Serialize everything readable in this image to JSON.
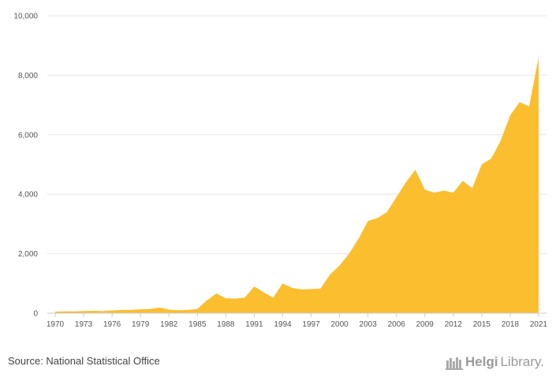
{
  "chart_data": {
    "type": "area",
    "x": [
      1970,
      1971,
      1972,
      1973,
      1974,
      1975,
      1976,
      1977,
      1978,
      1979,
      1980,
      1981,
      1982,
      1983,
      1984,
      1985,
      1986,
      1987,
      1988,
      1989,
      1990,
      1991,
      1992,
      1993,
      1994,
      1995,
      1996,
      1997,
      1998,
      1999,
      2000,
      2001,
      2002,
      2003,
      2004,
      2005,
      2006,
      2007,
      2008,
      2009,
      2010,
      2011,
      2012,
      2013,
      2014,
      2015,
      2016,
      2017,
      2018,
      2019,
      2020,
      2021
    ],
    "values": [
      50,
      60,
      60,
      70,
      80,
      70,
      90,
      110,
      110,
      130,
      140,
      190,
      120,
      100,
      110,
      140,
      430,
      660,
      500,
      490,
      520,
      900,
      700,
      520,
      1000,
      850,
      800,
      810,
      830,
      1300,
      1600,
      2000,
      2500,
      3100,
      3200,
      3400,
      3900,
      4400,
      4820,
      4150,
      4050,
      4120,
      4050,
      4450,
      4200,
      5000,
      5200,
      5800,
      6650,
      7100,
      6950,
      8600
    ],
    "xticks": [
      "1970",
      "1973",
      "1976",
      "1979",
      "1982",
      "1985",
      "1988",
      "1991",
      "1994",
      "1997",
      "2000",
      "2003",
      "2006",
      "2009",
      "2012",
      "2015",
      "2018",
      "2021"
    ],
    "yticks": [
      "0",
      "2,000",
      "4,000",
      "6,000",
      "8,000",
      "10,000"
    ],
    "ylim": [
      0,
      10000
    ],
    "grid": true,
    "color": "#FBBE2E"
  },
  "footer": {
    "source": "Source: National Statistical Office",
    "brand_a": "Helgi",
    "brand_b": "Library."
  }
}
